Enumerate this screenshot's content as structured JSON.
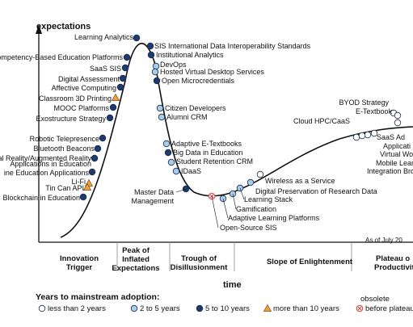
{
  "axes": {
    "y_label": "expectations",
    "x_label": "time"
  },
  "as_of": "As of July 20",
  "phases": [
    {
      "line1": "Innovation",
      "line2": "Trigger",
      "line3": ""
    },
    {
      "line1": "Peak of",
      "line2": "Inflated",
      "line3": "Expectations"
    },
    {
      "line1": "Trough of",
      "line2": "Disillusionment",
      "line3": ""
    },
    {
      "line1": "Slope of Enlightenment",
      "line2": "",
      "line3": ""
    },
    {
      "line1": "Plateau o",
      "line2": "Productivit",
      "line3": ""
    }
  ],
  "legend": {
    "title": "Years to mainstream adoption:",
    "obsolete_label": "obsolete",
    "items": [
      {
        "text": "less than 2 years",
        "marker": "white-circle"
      },
      {
        "text": "2 to 5 years",
        "marker": "light-blue-circle"
      },
      {
        "text": "5 to 10 years",
        "marker": "dark-blue-circle"
      },
      {
        "text": "more than 10 years",
        "marker": "orange-triangle"
      },
      {
        "text": "before plateau",
        "marker": "red-x-circle"
      }
    ]
  },
  "colors": {
    "less_than_2": "#ffffff",
    "two_to_five": "#a9cde6",
    "five_to_ten": "#1f3a6e",
    "more_than_ten": "#f0a03c",
    "obsolete": "#d83a3a",
    "curve": "#111111"
  },
  "technologies": [
    {
      "label": "Learning Analytics",
      "category": "5-10"
    },
    {
      "label": "Competency-Based Education Platforms",
      "category": "5-10"
    },
    {
      "label": "SaaS SIS",
      "category": "5-10"
    },
    {
      "label": "Digital Assessment",
      "category": "5-10"
    },
    {
      "label": "Affective Computing",
      "category": "5-10"
    },
    {
      "label": "Classroom 3D Printing",
      "category": ">10"
    },
    {
      "label": "MOOC Platforms",
      "category": "5-10"
    },
    {
      "label": "Exostructure Strategy",
      "category": "5-10"
    },
    {
      "label": "Robotic Telepresence",
      "category": "5-10"
    },
    {
      "label": "Bluetooth Beacons",
      "category": "5-10"
    },
    {
      "label": "al Reality/Augmented Reality",
      "category": "5-10"
    },
    {
      "label": "Applications in Education",
      "category": "5-10"
    },
    {
      "label": "ine Education Applications",
      "category": "5-10"
    },
    {
      "label": "Li-Fi",
      "category": ">10"
    },
    {
      "label": "Tin Can API",
      "category": ">10"
    },
    {
      "label": "Blockchain in Education",
      "category": "5-10"
    },
    {
      "label": "SIS International Data Interoperability Standards",
      "category": "5-10"
    },
    {
      "label": "Institutional Analytics",
      "category": "5-10"
    },
    {
      "label": "DevOps",
      "category": "2-5"
    },
    {
      "label": "Hosted Virtual Desktop Services",
      "category": "2-5"
    },
    {
      "label": "Open Microcredentials",
      "category": "5-10"
    },
    {
      "label": "Citizen Developers",
      "category": "2-5"
    },
    {
      "label": "Alumni CRM",
      "category": "2-5"
    },
    {
      "label": "Adaptive E-Textbooks",
      "category": "2-5"
    },
    {
      "label": "Big Data in Education",
      "category": "5-10"
    },
    {
      "label": "Student Retention CRM",
      "category": "2-5"
    },
    {
      "label": "IDaaS",
      "category": "2-5"
    },
    {
      "label": "Master Data",
      "category": "5-10"
    },
    {
      "label": "Management",
      "category": ""
    },
    {
      "label": "Open-Source SIS",
      "category": "obsolete"
    },
    {
      "label": "Adaptive Learning Platforms",
      "category": "2-5"
    },
    {
      "label": "Gamification",
      "category": "2-5"
    },
    {
      "label": "Learning Stack",
      "category": "2-5"
    },
    {
      "label": "Digital Preservation of Research Data",
      "category": "2-5"
    },
    {
      "label": "Wireless as a Service",
      "category": "<2"
    },
    {
      "label": "BYOD Strategy",
      "category": "<2"
    },
    {
      "label": "E-Textbook",
      "category": "<2"
    },
    {
      "label": "Cloud HPC/CaaS",
      "category": "<2"
    },
    {
      "label": "SaaS Ad",
      "category": "<2"
    },
    {
      "label": "Applicati",
      "category": ""
    },
    {
      "label": "Virtual World",
      "category": "<2"
    },
    {
      "label": "Mobile Learning",
      "category": "<2"
    },
    {
      "label": "Integration Brokers",
      "category": "<2"
    }
  ]
}
